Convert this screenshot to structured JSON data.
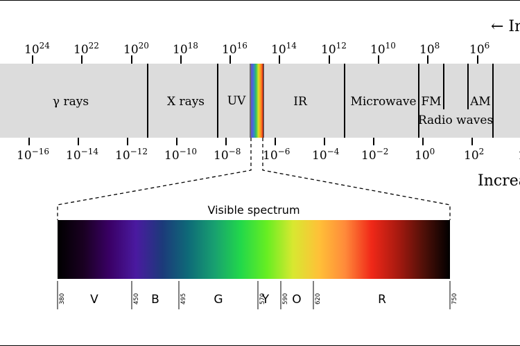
{
  "frequency_axis": {
    "direction_label": "← In",
    "ticks": [
      {
        "base": "10",
        "exp": "24"
      },
      {
        "base": "10",
        "exp": "22"
      },
      {
        "base": "10",
        "exp": "20"
      },
      {
        "base": "10",
        "exp": "18"
      },
      {
        "base": "10",
        "exp": "16"
      },
      {
        "base": "10",
        "exp": "14"
      },
      {
        "base": "10",
        "exp": "12"
      },
      {
        "base": "10",
        "exp": "10"
      },
      {
        "base": "10",
        "exp": "8"
      },
      {
        "base": "10",
        "exp": "6"
      }
    ]
  },
  "wavelength_axis": {
    "direction_label": "Increa",
    "ticks": [
      {
        "base": "10",
        "exp": "−16"
      },
      {
        "base": "10",
        "exp": "−14"
      },
      {
        "base": "10",
        "exp": "−12"
      },
      {
        "base": "10",
        "exp": "−10"
      },
      {
        "base": "10",
        "exp": "−8"
      },
      {
        "base": "10",
        "exp": "−6"
      },
      {
        "base": "10",
        "exp": "−4"
      },
      {
        "base": "10",
        "exp": "−2"
      },
      {
        "base": "10",
        "exp": "0"
      },
      {
        "base": "10",
        "exp": "2"
      },
      {
        "base": "1",
        "exp": ""
      }
    ]
  },
  "bands": [
    {
      "label": "γ rays"
    },
    {
      "label": "X rays"
    },
    {
      "label": "UV"
    },
    {
      "label": "IR"
    },
    {
      "label": "Microwave"
    },
    {
      "label": "FM"
    },
    {
      "label": "AM"
    },
    {
      "label": "Radio waves"
    }
  ],
  "visible": {
    "title": "Visible spectrum",
    "gradient_colors": [
      "#000000",
      "#1a0022",
      "#3a0066",
      "#4a1aa0",
      "#1c3a7a",
      "#0e6a78",
      "#18a070",
      "#22d84a",
      "#66ee22",
      "#d8e830",
      "#ffc038",
      "#ff8a3a",
      "#f02818",
      "#a81a10",
      "#501008",
      "#000000"
    ],
    "ticks": [
      {
        "value": "380"
      },
      {
        "value": "450"
      },
      {
        "value": "495"
      },
      {
        "value": "570"
      },
      {
        "value": "590"
      },
      {
        "value": "620"
      },
      {
        "value": "750"
      }
    ],
    "color_bands": [
      {
        "label": "V"
      },
      {
        "label": "B"
      },
      {
        "label": "G"
      },
      {
        "label": "Y"
      },
      {
        "label": "O"
      },
      {
        "label": "R"
      }
    ]
  },
  "colors": {
    "band_fill": "#dcdcdc",
    "line": "#000000"
  }
}
